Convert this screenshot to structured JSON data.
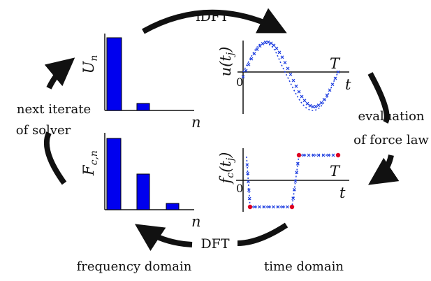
{
  "colors": {
    "bar": "#0000ee",
    "signal": "#1f3fe0",
    "point": "#dd0022",
    "arrow": "#111111"
  },
  "cycle_labels": {
    "top": "iDFT",
    "bottom": "DFT",
    "right_line1": "evaluation",
    "right_line2": "of force law",
    "left_line1": "next iterate",
    "left_line2": "of solver"
  },
  "domains": {
    "frequency": "frequency domain",
    "time": "time domain"
  },
  "top_left_plot": {
    "ylabel_main": "U",
    "ylabel_sub": "n",
    "xlabel": "n",
    "bars": [
      1.0,
      0.1
    ]
  },
  "bottom_left_plot": {
    "ylabel_main": "F",
    "ylabel_sub": "c,n",
    "xlabel": "n",
    "bars": [
      1.0,
      0.5,
      0.1
    ]
  },
  "top_right_plot": {
    "ylabel": "u(t",
    "ylabel_sub": "j",
    "ylabel_close": ")",
    "xlabel": "t",
    "period": "T",
    "zero": "0"
  },
  "bottom_right_plot": {
    "ylabel": "f",
    "ylabel_sub1": "c",
    "ylabel_mid": "(t",
    "ylabel_sub2": "j",
    "ylabel_close": ")",
    "xlabel": "t",
    "period": "T",
    "zero": "0"
  }
}
